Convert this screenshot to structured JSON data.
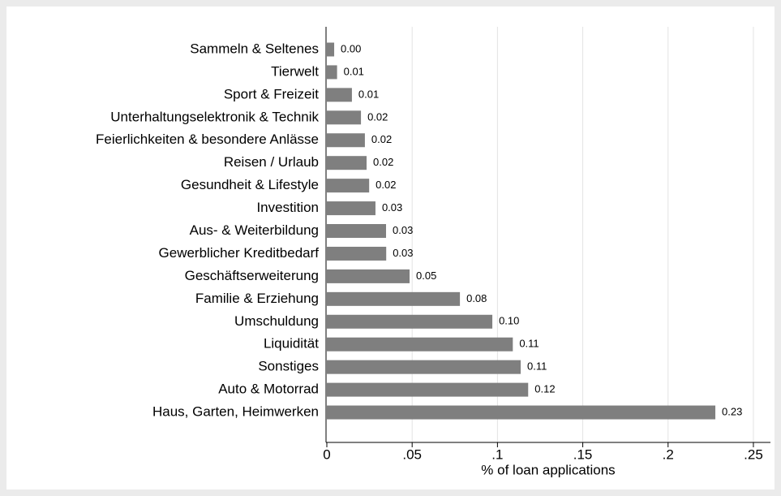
{
  "chart_data": {
    "type": "barh",
    "categories": [
      "Sammeln & Seltenes",
      "Tierwelt",
      "Sport & Freizeit",
      "Unterhaltungselektronik & Technik",
      "Feierlichkeiten & besondere Anlässe",
      "Reisen / Urlaub",
      "Gesundheit & Lifestyle",
      "Investition",
      "Aus- & Weiterbildung",
      "Gewerblicher Kreditbedarf",
      "Geschäftserweiterung",
      "Familie & Erziehung",
      "Umschuldung",
      "Liquidität",
      "Sonstiges",
      "Auto & Motorrad",
      "Haus, Garten, Heimwerken"
    ],
    "values": [
      0.0043,
      0.006,
      0.0147,
      0.02,
      0.0223,
      0.0233,
      0.0248,
      0.0285,
      0.0347,
      0.0348,
      0.0485,
      0.078,
      0.097,
      0.109,
      0.1136,
      0.118,
      0.2277
    ],
    "value_labels": [
      "0.00",
      "0.01",
      "0.01",
      "0.02",
      "0.02",
      "0.02",
      "0.02",
      "0.03",
      "0.03",
      "0.03",
      "0.05",
      "0.08",
      "0.10",
      "0.11",
      "0.11",
      "0.12",
      "0.23"
    ],
    "color": "#7f7f7f",
    "xlabel": "% of loan applications",
    "xlim": [
      0,
      0.26
    ],
    "xticks": [
      0,
      {
        "value": 0.05,
        "label": ".05"
      },
      {
        "value": 0.1,
        "label": ".1"
      },
      {
        "value": 0.15,
        "label": ".15"
      },
      {
        "value": 0.2,
        "label": ".2"
      },
      {
        "value": 0.25,
        "label": ".25"
      }
    ],
    "grid": true
  }
}
